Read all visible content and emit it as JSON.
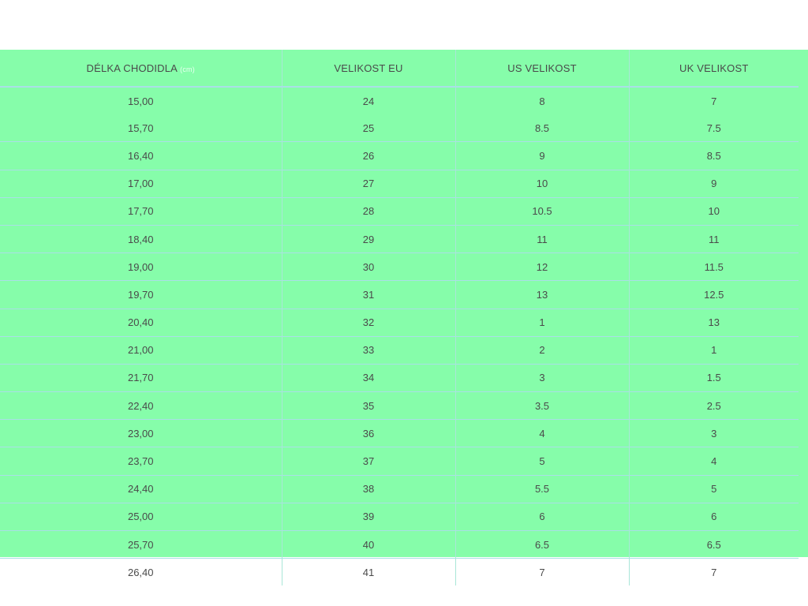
{
  "table": {
    "headers": [
      "DÉLKA CHODIDLA",
      "VELIKOST EU",
      "US VELIKOST",
      "UK VELIKOST"
    ],
    "first_header_unit": "(cm)",
    "rows": [
      [
        "15,00",
        "24",
        "8",
        "7"
      ],
      [
        "15,70",
        "25",
        "8.5",
        "7.5"
      ],
      [
        "16,40",
        "26",
        "9",
        "8.5"
      ],
      [
        "17,00",
        "27",
        "10",
        "9"
      ],
      [
        "17,70",
        "28",
        "10.5",
        "10"
      ],
      [
        "18,40",
        "29",
        "11",
        "11"
      ],
      [
        "19,00",
        "30",
        "12",
        "11.5"
      ],
      [
        "19,70",
        "31",
        "13",
        "12.5"
      ],
      [
        "20,40",
        "32",
        "1",
        "13"
      ],
      [
        "21,00",
        "33",
        "2",
        "1"
      ],
      [
        "21,70",
        "34",
        "3",
        "1.5"
      ],
      [
        "22,40",
        "35",
        "3.5",
        "2.5"
      ],
      [
        "23,00",
        "36",
        "4",
        "3"
      ],
      [
        "23,70",
        "37",
        "5",
        "4"
      ],
      [
        "24,40",
        "38",
        "5.5",
        "5"
      ],
      [
        "25,00",
        "39",
        "6",
        "6"
      ],
      [
        "25,70",
        "40",
        "6.5",
        "6.5"
      ],
      [
        "26,40",
        "41",
        "7",
        "7"
      ]
    ]
  },
  "colors": {
    "background": "#86fdaa",
    "text": "#4a4a4a"
  }
}
